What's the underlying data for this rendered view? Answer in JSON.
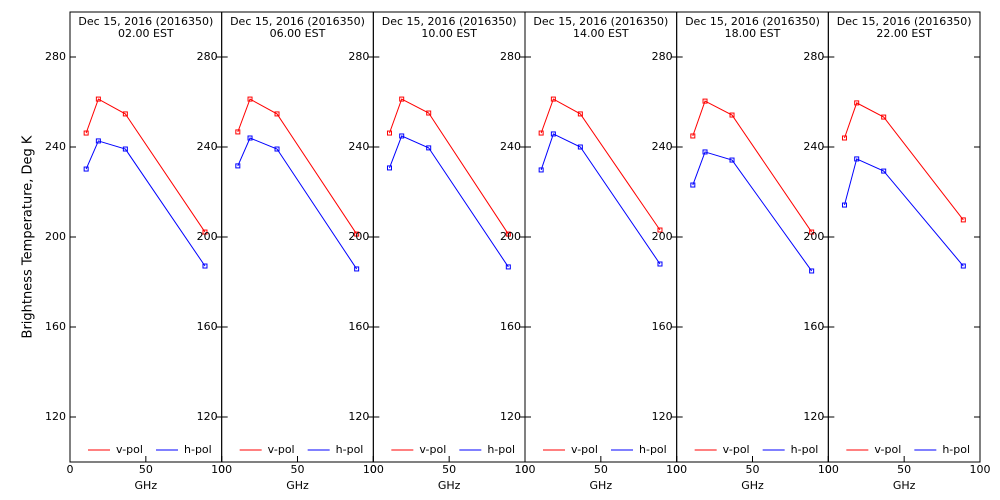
{
  "chart_data": [
    {
      "type": "line",
      "title": "Dec 15, 2016 (2016350)",
      "subtitle": "02.00 EST",
      "ylabel": "Brightness Temperature, Deg K",
      "xlabel": "GHz",
      "x": [
        10.65,
        18.7,
        36.5,
        89
      ],
      "series": [
        {
          "name": "v-pol",
          "color": "#ff0000",
          "values": [
            246.2,
            261.3,
            254.7,
            202.2
          ]
        },
        {
          "name": "h-pol",
          "color": "#0000ff",
          "values": [
            230.2,
            242.7,
            239.1,
            187.1
          ]
        }
      ],
      "xlim": [
        0,
        100
      ],
      "xticks": [
        0,
        50,
        100
      ],
      "ylim": [
        100,
        300
      ],
      "yticks": [
        120,
        160,
        200,
        240,
        280
      ]
    },
    {
      "type": "line",
      "title": "Dec 15, 2016 (2016350)",
      "subtitle": "06.00 EST",
      "xlabel": "GHz",
      "x": [
        10.65,
        18.7,
        36.5,
        89
      ],
      "series": [
        {
          "name": "v-pol",
          "color": "#ff0000",
          "values": [
            246.7,
            261.3,
            254.7,
            201.3
          ]
        },
        {
          "name": "h-pol",
          "color": "#0000ff",
          "values": [
            231.6,
            244,
            239.1,
            185.8
          ]
        }
      ],
      "xlim": [
        0,
        100
      ],
      "xticks": [
        0,
        50,
        100
      ],
      "ylim": [
        100,
        300
      ],
      "yticks": [
        120,
        160,
        200,
        240,
        280
      ]
    },
    {
      "type": "line",
      "title": "Dec 15, 2016 (2016350)",
      "subtitle": "10.00 EST",
      "xlabel": "GHz",
      "x": [
        10.65,
        18.7,
        36.5,
        89
      ],
      "series": [
        {
          "name": "v-pol",
          "color": "#ff0000",
          "values": [
            246.2,
            261.3,
            255.1,
            201.3
          ]
        },
        {
          "name": "h-pol",
          "color": "#0000ff",
          "values": [
            230.7,
            244.9,
            239.6,
            186.7
          ]
        }
      ],
      "xlim": [
        0,
        100
      ],
      "xticks": [
        0,
        50,
        100
      ],
      "ylim": [
        100,
        300
      ],
      "yticks": [
        120,
        160,
        200,
        240,
        280
      ]
    },
    {
      "type": "line",
      "title": "Dec 15, 2016 (2016350)",
      "subtitle": "14.00 EST",
      "xlabel": "GHz",
      "x": [
        10.65,
        18.7,
        36.5,
        89
      ],
      "series": [
        {
          "name": "v-pol",
          "color": "#ff0000",
          "values": [
            246.2,
            261.3,
            254.7,
            203.1
          ]
        },
        {
          "name": "h-pol",
          "color": "#0000ff",
          "values": [
            229.8,
            245.8,
            240,
            188
          ]
        }
      ],
      "xlim": [
        0,
        100
      ],
      "xticks": [
        0,
        50,
        100
      ],
      "ylim": [
        100,
        300
      ],
      "yticks": [
        120,
        160,
        200,
        240,
        280
      ]
    },
    {
      "type": "line",
      "title": "Dec 15, 2016 (2016350)",
      "subtitle": "18.00 EST",
      "xlabel": "GHz",
      "x": [
        10.65,
        18.7,
        36.5,
        89
      ],
      "series": [
        {
          "name": "v-pol",
          "color": "#ff0000",
          "values": [
            244.9,
            260.4,
            254.2,
            202.2
          ]
        },
        {
          "name": "h-pol",
          "color": "#0000ff",
          "values": [
            223.1,
            237.8,
            234.2,
            184.9
          ]
        }
      ],
      "xlim": [
        0,
        100
      ],
      "xticks": [
        0,
        50,
        100
      ],
      "ylim": [
        100,
        300
      ],
      "yticks": [
        120,
        160,
        200,
        240,
        280
      ]
    },
    {
      "type": "line",
      "title": "Dec 15, 2016 (2016350)",
      "subtitle": "22.00 EST",
      "xlabel": "GHz",
      "x": [
        10.65,
        18.7,
        36.5,
        89
      ],
      "series": [
        {
          "name": "v-pol",
          "color": "#ff0000",
          "values": [
            244,
            259.6,
            253.3,
            207.6
          ]
        },
        {
          "name": "h-pol",
          "color": "#0000ff",
          "values": [
            214.2,
            234.7,
            229.3,
            187.1
          ]
        }
      ],
      "xlim": [
        0,
        100
      ],
      "xticks": [
        0,
        50,
        100
      ],
      "ylim": [
        100,
        300
      ],
      "yticks": [
        120,
        160,
        200,
        240,
        280
      ]
    }
  ]
}
